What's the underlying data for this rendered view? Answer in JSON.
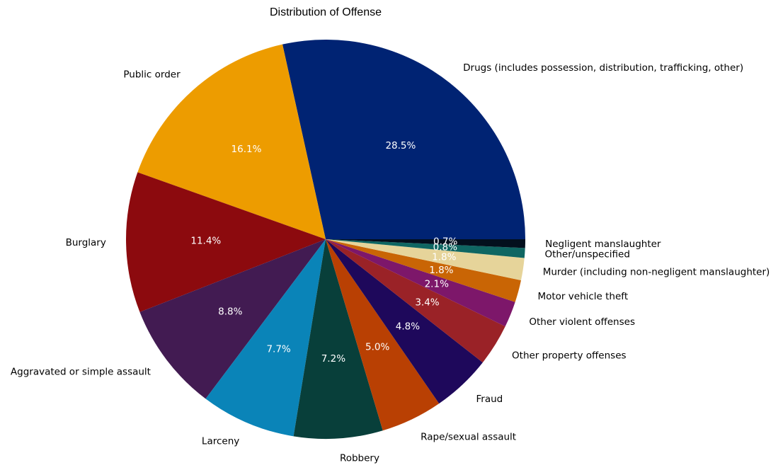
{
  "chart_data": {
    "type": "pie",
    "title": "Distribution of Offense",
    "start_angle_deg": 0,
    "direction": "counterclockwise",
    "slices": [
      {
        "label": "Drugs (includes possession, distribution, trafficking, other)",
        "value": 28.5,
        "pct_label": "28.5%",
        "color": "#002373"
      },
      {
        "label": "Public order",
        "value": 16.1,
        "pct_label": "16.1%",
        "color": "#ED9C00"
      },
      {
        "label": "Burglary",
        "value": 11.4,
        "pct_label": "11.4%",
        "color": "#8C0A0E"
      },
      {
        "label": "Aggravated or simple assault",
        "value": 8.8,
        "pct_label": "8.8%",
        "color": "#421B52"
      },
      {
        "label": "Larceny",
        "value": 7.7,
        "pct_label": "7.7%",
        "color": "#0A84B8"
      },
      {
        "label": "Robbery",
        "value": 7.2,
        "pct_label": "7.2%",
        "color": "#083F3A"
      },
      {
        "label": "Rape/sexual assault",
        "value": 5.0,
        "pct_label": "5.0%",
        "color": "#B94003"
      },
      {
        "label": "Fraud",
        "value": 4.8,
        "pct_label": "4.8%",
        "color": "#1E085B"
      },
      {
        "label": "Other property offenses",
        "value": 3.4,
        "pct_label": "3.4%",
        "color": "#9A2227"
      },
      {
        "label": "Other violent offenses",
        "value": 2.1,
        "pct_label": "2.1%",
        "color": "#7D176A"
      },
      {
        "label": "Motor vehicle theft",
        "value": 1.8,
        "pct_label": "1.8%",
        "color": "#C96505"
      },
      {
        "label": "Murder (including non-negligent manslaughter)",
        "value": 1.8,
        "pct_label": "1.8%",
        "color": "#E6D49A"
      },
      {
        "label": "Other/unspecified",
        "value": 0.8,
        "pct_label": "0.8%",
        "color": "#0F6662"
      },
      {
        "label": "Negligent manslaughter",
        "value": 0.7,
        "pct_label": "0.7%",
        "color": "#030F1D"
      }
    ]
  }
}
